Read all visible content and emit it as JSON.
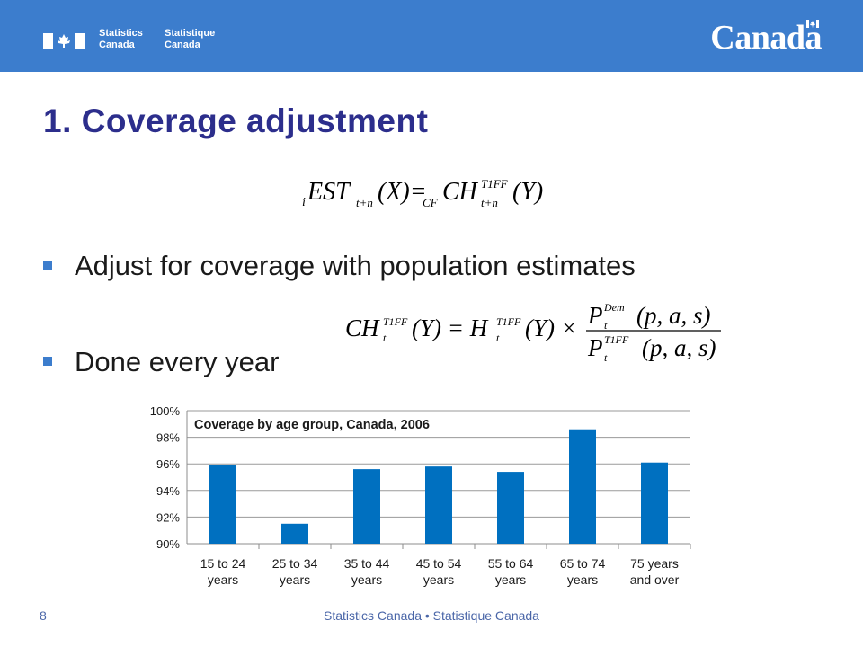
{
  "header": {
    "agency_en_line1": "Statistics",
    "agency_en_line2": "Canada",
    "agency_fr_line1": "Statistique",
    "agency_fr_line2": "Canada",
    "wordmark": "Canada",
    "bar_color": "#3c7dcd",
    "flag_icon": "canada-flag-icon"
  },
  "slide": {
    "title": "1. Coverage adjustment",
    "bullets": [
      "Adjust for coverage with population estimates",
      "Done every year"
    ],
    "title_color": "#2c2e8c",
    "bullet_color": "#3c7dcd"
  },
  "footer": {
    "page_number": "8",
    "text": "Statistics Canada • Statistique Canada"
  },
  "chart_data": {
    "type": "bar",
    "title": "Coverage by age group, Canada, 2006",
    "categories": [
      [
        "15 to 24",
        "years"
      ],
      [
        "25 to 34",
        "years"
      ],
      [
        "35 to 44",
        "years"
      ],
      [
        "45 to 54",
        "years"
      ],
      [
        "55 to 64",
        "years"
      ],
      [
        "65 to 74",
        "years"
      ],
      [
        "75 years",
        "and over"
      ]
    ],
    "values": [
      95.9,
      91.5,
      95.6,
      95.8,
      95.4,
      98.6,
      96.1
    ],
    "yticks": [
      "90%",
      "92%",
      "94%",
      "96%",
      "98%",
      "100%"
    ],
    "ylim": [
      90,
      100
    ],
    "grid": true,
    "bar_color": "#0070c0"
  }
}
